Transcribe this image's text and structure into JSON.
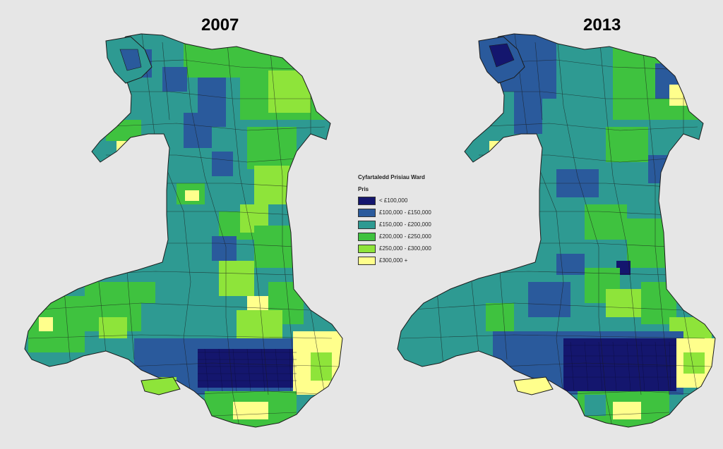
{
  "maps": [
    {
      "year_label": "2007"
    },
    {
      "year_label": "2013"
    }
  ],
  "legend": {
    "title": "Cyfartaledd Prisiau Ward",
    "subtitle": "Pris",
    "classes": [
      {
        "label": "< £100,000",
        "color": "#14166e"
      },
      {
        "label": "£100,000 - £150,000",
        "color": "#2a5a9c"
      },
      {
        "label": "£150,000 - £200,000",
        "color": "#2e9a92"
      },
      {
        "label": "£200,000 - £250,000",
        "color": "#3fc23f"
      },
      {
        "label": "£250,000 - £300,000",
        "color": "#8ee43a"
      },
      {
        "label": "£300,000 +",
        "color": "#ffff8c"
      }
    ]
  },
  "colors": {
    "background": "#e6e6e6",
    "boundary": "#1a1a1a"
  }
}
